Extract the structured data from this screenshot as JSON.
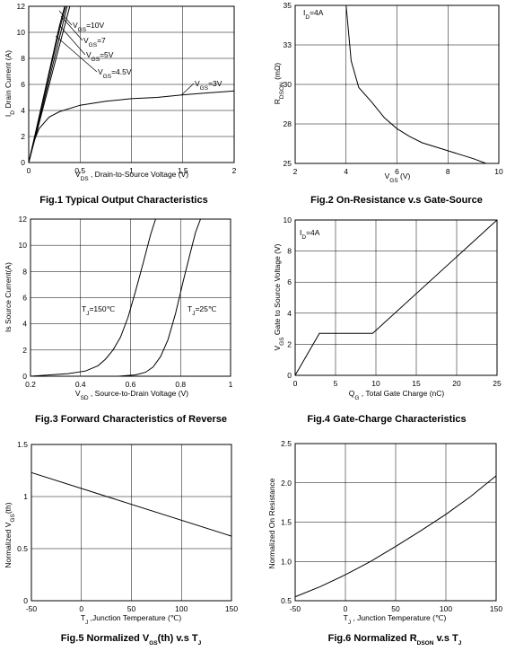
{
  "chart_data": [
    {
      "type": "line",
      "title": "Fig.1 Typical Output Characteristics",
      "xlabel": "V_DS , Drain-to-Source Voltage (V)",
      "ylabel": "I_D Drain Current (A)",
      "xlim": [
        0,
        2
      ],
      "ylim": [
        0,
        12
      ],
      "xticks": [
        "0",
        "0.5",
        "1",
        "1.5",
        "2"
      ],
      "yticks": [
        "0",
        "2",
        "4",
        "6",
        "8",
        "10",
        "12"
      ],
      "grid": true,
      "series": [
        {
          "name": "VGS=10V",
          "x": [
            0,
            0.1,
            0.2,
            0.3,
            0.35
          ],
          "y": [
            0,
            3.5,
            7.0,
            10.5,
            12
          ]
        },
        {
          "name": "VGS=7",
          "x": [
            0,
            0.1,
            0.2,
            0.3,
            0.36
          ],
          "y": [
            0,
            3.4,
            6.8,
            10.2,
            12
          ]
        },
        {
          "name": "VGS=5V",
          "x": [
            0,
            0.1,
            0.2,
            0.3,
            0.375
          ],
          "y": [
            0,
            3.2,
            6.4,
            9.6,
            12
          ]
        },
        {
          "name": "VGS=4.5V",
          "x": [
            0,
            0.1,
            0.2,
            0.3,
            0.4
          ],
          "y": [
            0,
            3.0,
            6.0,
            9.0,
            12
          ]
        },
        {
          "name": "VGS=3V",
          "x": [
            0,
            0.05,
            0.1,
            0.2,
            0.3,
            0.5,
            0.75,
            1.0,
            1.25,
            1.5,
            1.75,
            2.0
          ],
          "y": [
            0,
            1.6,
            2.6,
            3.5,
            3.9,
            4.4,
            4.7,
            4.9,
            5.0,
            5.2,
            5.35,
            5.5
          ]
        }
      ],
      "annotations": [
        {
          "base": "V",
          "sub": "GS",
          "rest": "=10V"
        },
        {
          "base": "V",
          "sub": "GS",
          "rest": "=7"
        },
        {
          "base": "V",
          "sub": "GS",
          "rest": "=5V"
        },
        {
          "base": "V",
          "sub": "GS",
          "rest": "=4.5V"
        },
        {
          "base": "V",
          "sub": "GS",
          "rest": "=3V"
        }
      ]
    },
    {
      "type": "line",
      "title": "Fig.2 On-Resistance v.s Gate-Source",
      "xlabel": "V_GS (V)",
      "ylabel": "R_DSON (mΩ)",
      "xlim": [
        2,
        10
      ],
      "ylim": [
        25,
        35
      ],
      "xticks": [
        "2",
        "4",
        "6",
        "8",
        "10"
      ],
      "yticks": [
        "25",
        "28",
        "30",
        "33",
        "35"
      ],
      "grid": true,
      "series": [
        {
          "name": "",
          "x": [
            4.0,
            4.2,
            4.5,
            5.0,
            5.5,
            6.0,
            6.5,
            7.0,
            8.0,
            9.0,
            9.5
          ],
          "y": [
            35,
            31.5,
            29.8,
            28.9,
            27.9,
            27.2,
            26.7,
            26.3,
            25.8,
            25.3,
            25.0
          ]
        }
      ],
      "annotations": [
        {
          "base": "I",
          "sub": "D",
          "rest": "=4A"
        }
      ]
    },
    {
      "type": "line",
      "title": "Fig.3 Forward Characteristics of Reverse",
      "xlabel": "V_SD , Source-to-Drain Voltage (V)",
      "ylabel": "Is Source Current(A)",
      "xlim": [
        0.2,
        1
      ],
      "ylim": [
        0,
        12
      ],
      "xticks": [
        "0.2",
        "0.4",
        "0.6",
        "0.8",
        "1"
      ],
      "yticks": [
        "0",
        "2",
        "4",
        "6",
        "8",
        "10",
        "12"
      ],
      "grid": true,
      "series": [
        {
          "name": "TJ=150℃",
          "x": [
            0.2,
            0.35,
            0.42,
            0.47,
            0.5,
            0.53,
            0.56,
            0.59,
            0.62,
            0.65,
            0.68,
            0.7
          ],
          "y": [
            0,
            0.2,
            0.4,
            0.8,
            1.3,
            2.0,
            3.0,
            4.5,
            6.5,
            8.6,
            10.8,
            12
          ]
        },
        {
          "name": "TJ=25℃",
          "x": [
            0.2,
            0.55,
            0.62,
            0.66,
            0.69,
            0.72,
            0.75,
            0.78,
            0.81,
            0.84,
            0.86,
            0.88
          ],
          "y": [
            0,
            0,
            0.1,
            0.3,
            0.7,
            1.5,
            2.8,
            4.8,
            7.2,
            9.5,
            11.0,
            12
          ]
        }
      ],
      "annotations": [
        {
          "base": "T",
          "sub": "J",
          "rest": "=150℃"
        },
        {
          "base": "T",
          "sub": "J",
          "rest": "=25℃"
        }
      ]
    },
    {
      "type": "line",
      "title": "Fig.4 Gate-Charge Characteristics",
      "xlabel": "Q_G , Total Gate Charge (nC)",
      "ylabel": "V_GS Gate to Source Voltage (V)",
      "xlim": [
        0,
        25
      ],
      "ylim": [
        0,
        10
      ],
      "xticks": [
        "0",
        "5",
        "10",
        "15",
        "20",
        "25"
      ],
      "yticks": [
        "0",
        "2",
        "4",
        "6",
        "8",
        "10"
      ],
      "grid": true,
      "series": [
        {
          "name": "",
          "x": [
            0,
            3.0,
            9.6,
            25
          ],
          "y": [
            0,
            2.7,
            2.7,
            10
          ]
        }
      ],
      "annotations": [
        {
          "base": "I",
          "sub": "D",
          "rest": "=4A"
        }
      ]
    },
    {
      "type": "line",
      "title": "Fig.5 Normalized V_GS(th) v.s T_J",
      "xlabel": "T_J ,Junction Temperature (℃)",
      "ylabel": "Normalized V_GS(th)",
      "xlim": [
        -50,
        150
      ],
      "ylim": [
        0,
        1.5
      ],
      "xticks": [
        "-50",
        "0",
        "50",
        "100",
        "150"
      ],
      "yticks": [
        "0",
        "0.5",
        "1",
        "1.5"
      ],
      "grid": true,
      "series": [
        {
          "name": "",
          "x": [
            -50,
            150
          ],
          "y": [
            1.23,
            0.62
          ]
        }
      ]
    },
    {
      "type": "line",
      "title": "Fig.6 Normalized R_DSON v.s T_J",
      "xlabel": "T_J , Junction Temperature (℃)",
      "ylabel": "Normalized On Resistance",
      "xlim": [
        -50,
        150
      ],
      "ylim": [
        0.5,
        2.5
      ],
      "xticks": [
        "-50",
        "0",
        "50",
        "100",
        "150"
      ],
      "yticks": [
        "0.5",
        "1.0",
        "1.5",
        "2.0",
        "2.5"
      ],
      "grid": true,
      "series": [
        {
          "name": "",
          "x": [
            -50,
            -25,
            0,
            25,
            50,
            75,
            100,
            125,
            150
          ],
          "y": [
            0.55,
            0.68,
            0.83,
            1.0,
            1.19,
            1.39,
            1.6,
            1.83,
            2.09
          ]
        }
      ]
    }
  ]
}
